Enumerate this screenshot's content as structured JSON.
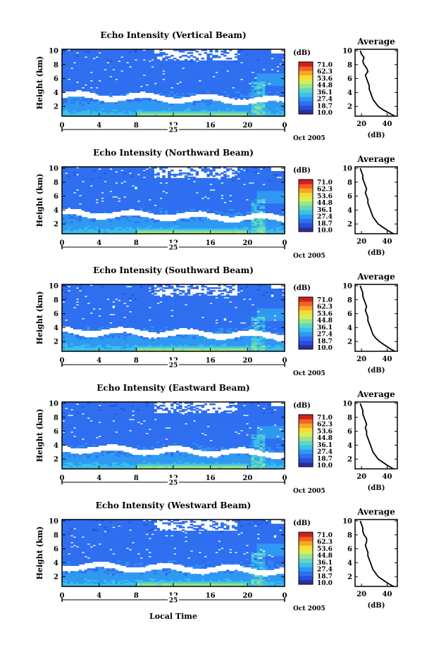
{
  "figure": {
    "xlabel": "Local Time",
    "date_label": "Oct 2005",
    "day_label": "25",
    "colorbar_unit": "(dB)",
    "colorbar_ticks": [
      "71.0",
      "62.3",
      "53.6",
      "44.8",
      "36.1",
      "27.4",
      "18.7",
      "10.0"
    ],
    "colormap": [
      "#2b2f9e",
      "#2a4fd9",
      "#2f6ff0",
      "#2f98f2",
      "#3cc0e8",
      "#5fd7c0",
      "#9be58a",
      "#d7ef56",
      "#f7dc33",
      "#f7a52a",
      "#f06423",
      "#d0201d"
    ],
    "average_title": "Average",
    "average_xlabel": "(dB)"
  },
  "chart_data": [
    {
      "type": "heatmap",
      "title": "Echo Intensity (Vertical Beam)",
      "xlabel": "Local Time",
      "ylabel": "Height (km)",
      "xlim": [
        0,
        24
      ],
      "ylim": [
        0.6,
        10.2
      ],
      "xticks": [
        "0",
        "4",
        "8",
        "12",
        "16",
        "20",
        "0"
      ],
      "yticks": [
        "2",
        "4",
        "6",
        "8",
        "10"
      ],
      "value_range_dB": [
        10.0,
        71.0
      ],
      "average_profile": {
        "xlim": [
          15,
          48
        ],
        "xticks": [
          "20",
          "40"
        ],
        "yticks": [
          "2",
          "4",
          "6",
          "8",
          "10"
        ],
        "height_km": [
          0.6,
          1.0,
          1.5,
          2.0,
          2.5,
          3.0,
          3.5,
          4.0,
          4.5,
          5.0,
          5.5,
          6.0,
          6.5,
          7.0,
          7.5,
          8.0,
          8.5,
          9.0,
          9.5,
          10.0
        ],
        "dB": [
          46,
          42,
          37,
          33,
          31,
          29,
          28,
          27,
          26,
          26,
          25,
          24,
          23,
          25,
          24,
          22,
          21,
          22,
          20,
          19
        ]
      }
    },
    {
      "type": "heatmap",
      "title": "Echo Intensity (Northward Beam)",
      "xlabel": "Local Time",
      "ylabel": "Height (km)",
      "xlim": [
        0,
        24
      ],
      "ylim": [
        0.6,
        10.2
      ],
      "xticks": [
        "0",
        "4",
        "8",
        "12",
        "16",
        "20",
        "0"
      ],
      "yticks": [
        "2",
        "4",
        "6",
        "8",
        "10"
      ],
      "value_range_dB": [
        10.0,
        71.0
      ],
      "average_profile": {
        "xlim": [
          15,
          48
        ],
        "xticks": [
          "20",
          "40"
        ],
        "yticks": [
          "2",
          "4",
          "6",
          "8",
          "10"
        ],
        "height_km": [
          0.6,
          1.0,
          1.5,
          2.0,
          2.5,
          3.0,
          3.5,
          4.0,
          4.5,
          5.0,
          5.5,
          6.0,
          6.5,
          7.0,
          7.5,
          8.0,
          8.5,
          9.0,
          9.5,
          10.0
        ],
        "dB": [
          45,
          41,
          37,
          33,
          31,
          29,
          28,
          27,
          26,
          25,
          25,
          24,
          23,
          24,
          23,
          22,
          21,
          21,
          20,
          19
        ]
      }
    },
    {
      "type": "heatmap",
      "title": "Echo Intensity (Southward Beam)",
      "xlabel": "Local Time",
      "ylabel": "Height (km)",
      "xlim": [
        0,
        24
      ],
      "ylim": [
        0.6,
        10.2
      ],
      "xticks": [
        "0",
        "4",
        "8",
        "12",
        "16",
        "20",
        "0"
      ],
      "yticks": [
        "2",
        "4",
        "6",
        "8",
        "10"
      ],
      "value_range_dB": [
        10.0,
        71.0
      ],
      "average_profile": {
        "xlim": [
          15,
          48
        ],
        "xticks": [
          "20",
          "40"
        ],
        "yticks": [
          "2",
          "4",
          "6",
          "8",
          "10"
        ],
        "height_km": [
          0.6,
          1.0,
          1.5,
          2.0,
          2.5,
          3.0,
          3.5,
          4.0,
          4.5,
          5.0,
          5.5,
          6.0,
          6.5,
          7.0,
          7.5,
          8.0,
          8.5,
          9.0,
          9.5,
          10.0
        ],
        "dB": [
          46,
          42,
          38,
          34,
          31,
          29,
          28,
          27,
          26,
          25,
          25,
          24,
          23,
          24,
          23,
          22,
          21,
          21,
          20,
          19
        ]
      }
    },
    {
      "type": "heatmap",
      "title": "Echo Intensity (Eastward Beam)",
      "xlabel": "Local Time",
      "ylabel": "Height (km)",
      "xlim": [
        0,
        24
      ],
      "ylim": [
        0.6,
        10.2
      ],
      "xticks": [
        "0",
        "4",
        "8",
        "12",
        "16",
        "20",
        "0"
      ],
      "yticks": [
        "2",
        "4",
        "6",
        "8",
        "10"
      ],
      "value_range_dB": [
        10.0,
        71.0
      ],
      "average_profile": {
        "xlim": [
          15,
          48
        ],
        "xticks": [
          "20",
          "40"
        ],
        "yticks": [
          "2",
          "4",
          "6",
          "8",
          "10"
        ],
        "height_km": [
          0.6,
          1.0,
          1.5,
          2.0,
          2.5,
          3.0,
          3.5,
          4.0,
          4.5,
          5.0,
          5.5,
          6.0,
          6.5,
          7.0,
          7.5,
          8.0,
          8.5,
          9.0,
          9.5,
          10.0
        ],
        "dB": [
          45,
          41,
          37,
          33,
          31,
          29,
          28,
          27,
          26,
          25,
          24,
          24,
          23,
          24,
          23,
          22,
          21,
          21,
          20,
          19
        ]
      }
    },
    {
      "type": "heatmap",
      "title": "Echo Intensity (Westward Beam)",
      "xlabel": "Local Time",
      "ylabel": "Height (km)",
      "xlim": [
        0,
        24
      ],
      "ylim": [
        0.6,
        10.2
      ],
      "xticks": [
        "0",
        "4",
        "8",
        "12",
        "16",
        "20",
        "0"
      ],
      "yticks": [
        "2",
        "4",
        "6",
        "8",
        "10"
      ],
      "value_range_dB": [
        10.0,
        71.0
      ],
      "average_profile": {
        "xlim": [
          15,
          48
        ],
        "xticks": [
          "20",
          "40"
        ],
        "yticks": [
          "2",
          "4",
          "6",
          "8",
          "10"
        ],
        "height_km": [
          0.6,
          1.0,
          1.5,
          2.0,
          2.5,
          3.0,
          3.5,
          4.0,
          4.5,
          5.0,
          5.5,
          6.0,
          6.5,
          7.0,
          7.5,
          8.0,
          8.5,
          9.0,
          9.5,
          10.0
        ],
        "dB": [
          45,
          41,
          37,
          33,
          31,
          29,
          28,
          27,
          26,
          25,
          25,
          24,
          23,
          24,
          24,
          22,
          21,
          21,
          20,
          19
        ]
      }
    }
  ]
}
